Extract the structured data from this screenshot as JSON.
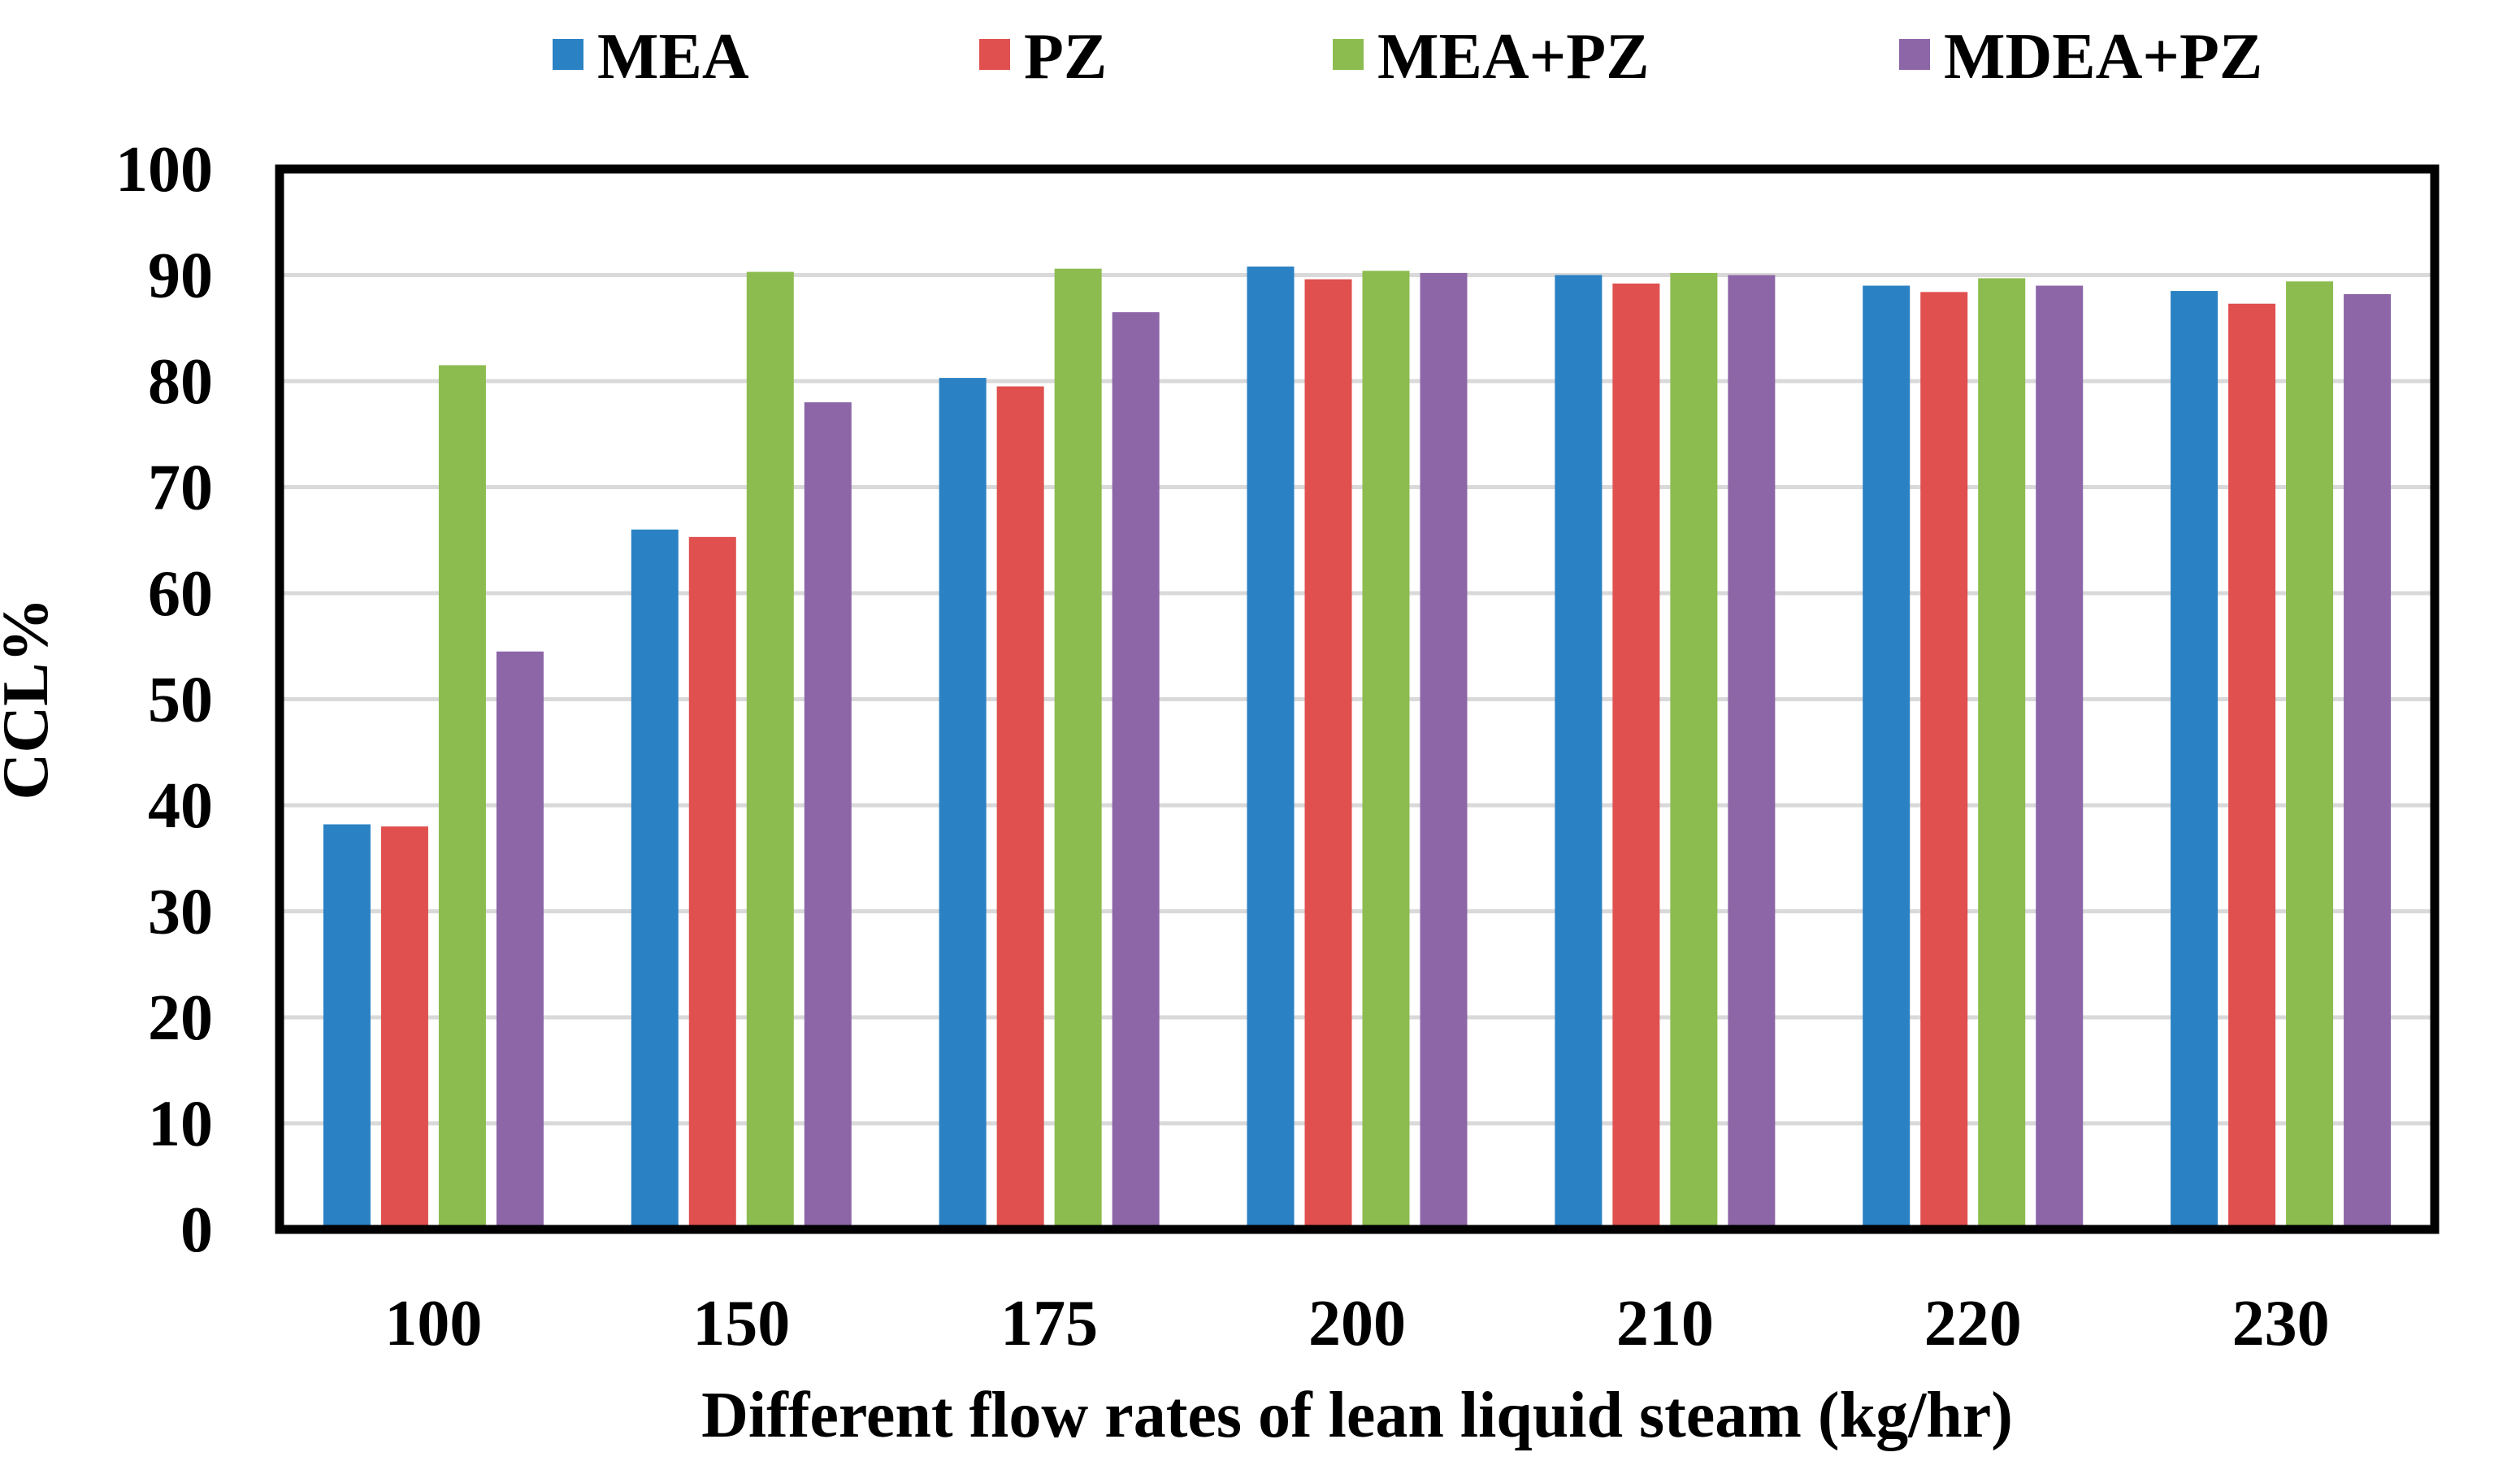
{
  "chart_data": {
    "type": "bar",
    "title": "",
    "xlabel": "Different flow rates of lean liquid steam (kg/hr)",
    "ylabel": "CCL%",
    "ylim": [
      0,
      100
    ],
    "yticks": [
      0,
      10,
      20,
      30,
      40,
      50,
      60,
      70,
      80,
      90,
      100
    ],
    "grid": true,
    "legend_position": "top",
    "categories": [
      "100",
      "150",
      "175",
      "200",
      "210",
      "220",
      "230"
    ],
    "series": [
      {
        "name": "MEA",
        "color": "#2a81c3",
        "values": [
          38.2,
          66.0,
          80.3,
          90.8,
          90.0,
          89.0,
          88.5
        ]
      },
      {
        "name": "PZ",
        "color": "#df504e",
        "values": [
          38.0,
          65.3,
          79.5,
          89.6,
          89.2,
          88.4,
          87.3
        ]
      },
      {
        "name": "MEA+PZ",
        "color": "#8cbc4f",
        "values": [
          81.5,
          90.3,
          90.6,
          90.4,
          90.2,
          89.7,
          89.4
        ]
      },
      {
        "name": "MDEA+PZ",
        "color": "#8d66a8",
        "values": [
          54.5,
          78.0,
          86.5,
          90.2,
          90.0,
          89.0,
          88.2
        ]
      }
    ]
  }
}
